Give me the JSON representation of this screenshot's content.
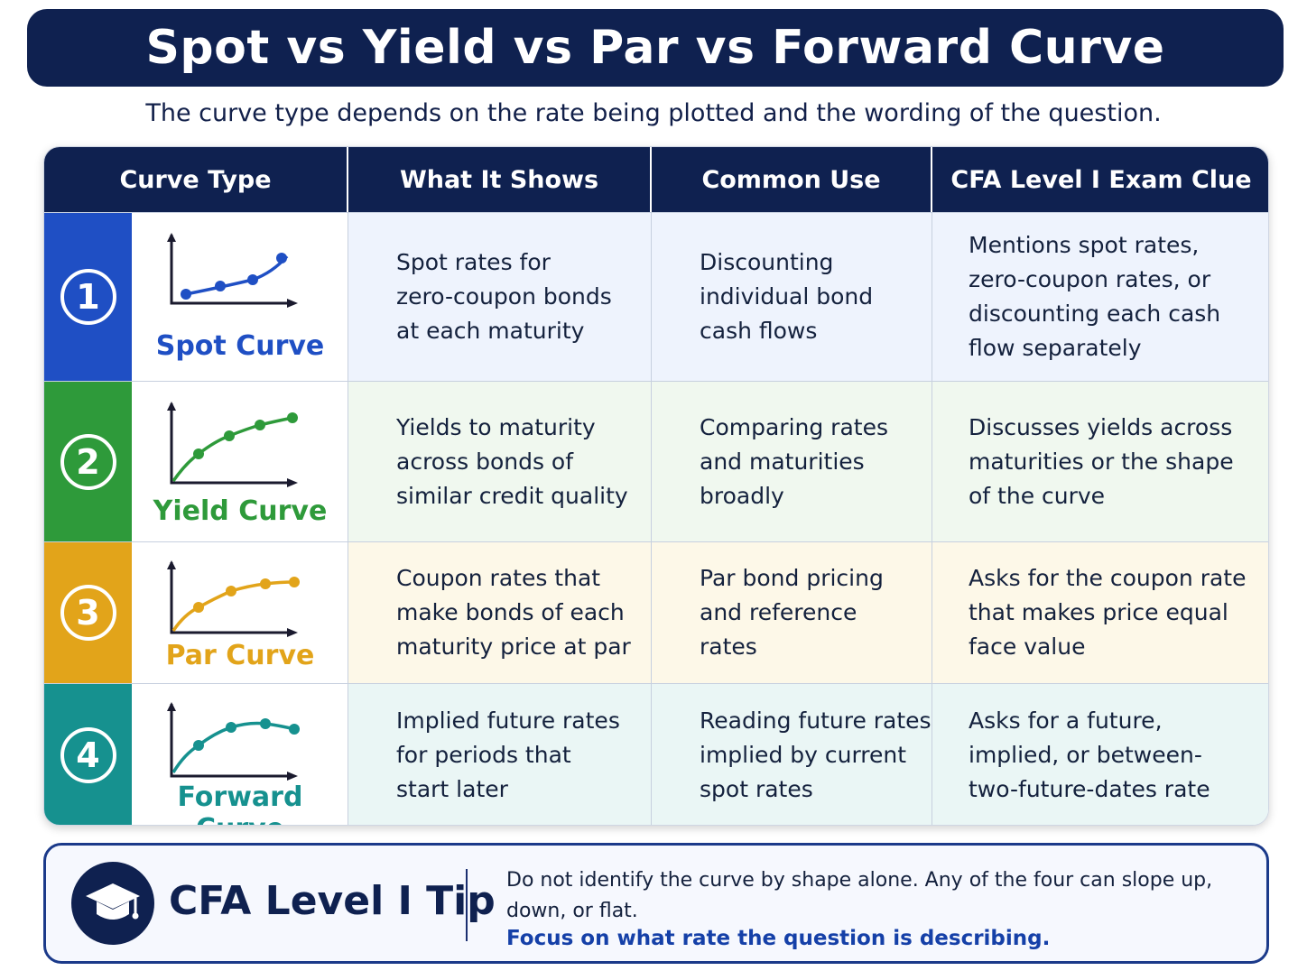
{
  "title": "Spot vs Yield vs Par vs Forward Curve",
  "subtitle": "The curve type depends on the rate being plotted and the wording of the question.",
  "headers": [
    "Curve Type",
    "What It Shows",
    "Common Use",
    "CFA Level I Exam Clue"
  ],
  "rows": [
    {
      "number": "1",
      "name": "Spot Curve",
      "color": "#1f4fc4",
      "tint": "#eef3fd",
      "icon": "rising-curve-chart-icon",
      "shows": "Spot rates for\nzero-coupon bonds\nat each maturity",
      "use": "Discounting\nindividual bond\ncash flows",
      "clue": "Mentions spot rates,\nzero-coupon rates, or\ndiscounting each cash\nflow separately"
    },
    {
      "number": "2",
      "name": "Yield Curve",
      "color": "#2e9a3a",
      "tint": "#f0f8ef",
      "icon": "upward-curve-chart-icon",
      "shows": "Yields to maturity\nacross bonds of\nsimilar credit quality",
      "use": "Comparing rates\nand maturities\nbroadly",
      "clue": "Discusses yields across\nmaturities or the shape\nof the curve"
    },
    {
      "number": "3",
      "name": "Par Curve",
      "color": "#e2a41a",
      "tint": "#fdf8e8",
      "icon": "flattening-curve-chart-icon",
      "shows": "Coupon rates that\nmake bonds of each\nmaturity price at par",
      "use": "Par bond pricing\nand reference\nrates",
      "clue": "Asks for the coupon rate\nthat makes price equal\nface value"
    },
    {
      "number": "4",
      "name": "Forward Curve",
      "color": "#16918f",
      "tint": "#eaf6f5",
      "icon": "humped-curve-chart-icon",
      "shows": "Implied future rates\nfor periods that\nstart later",
      "use": "Reading future rates\nimplied by current\nspot rates",
      "clue": "Asks for a future,\nimplied, or between-\ntwo-future-dates rate"
    }
  ],
  "tip": {
    "icon": "graduation-cap-icon",
    "title": "CFA Level I Tip",
    "text": "Do not identify the curve by shape alone. Any of the four can slope up, down, or flat.",
    "focus": "Focus on what rate the question is describing."
  }
}
